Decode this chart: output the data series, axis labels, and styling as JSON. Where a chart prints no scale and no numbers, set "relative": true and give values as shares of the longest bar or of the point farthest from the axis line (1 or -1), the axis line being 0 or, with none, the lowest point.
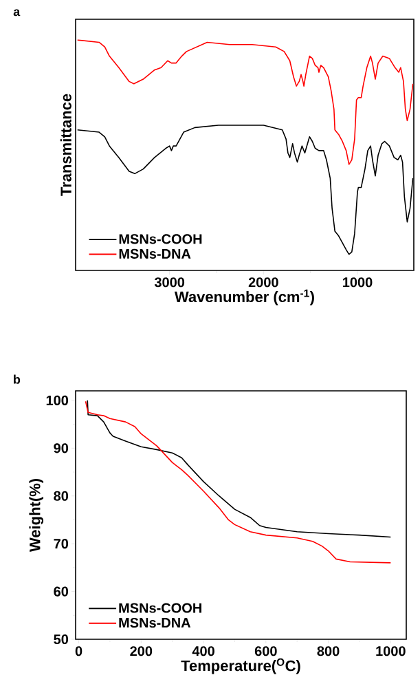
{
  "chart_data": [
    {
      "type": "line",
      "title": "a",
      "xlabel": "Wavenumber (cm$^{-1}$)",
      "ylabel": "Transmittance",
      "relative": true,
      "xlim": [
        4000,
        400
      ],
      "xticks": [
        3000,
        2000,
        1000
      ],
      "legend": "bottom left",
      "series": [
        {
          "name": "MSNs-COOH",
          "color": "#000000",
          "x": [
            3980,
            3750,
            3690,
            3640,
            3540,
            3430,
            3370,
            3280,
            3160,
            3040,
            3000,
            2980,
            2960,
            2930,
            2850,
            2730,
            2480,
            2240,
            2000,
            1800,
            1760,
            1740,
            1720,
            1690,
            1670,
            1640,
            1620,
            1590,
            1570,
            1560,
            1510,
            1480,
            1450,
            1410,
            1390,
            1360,
            1330,
            1290,
            1270,
            1240,
            1200,
            1160,
            1120,
            1090,
            1060,
            1030,
            1000,
            990,
            960,
            920,
            890,
            860,
            840,
            810,
            780,
            740,
            710,
            660,
            610,
            570,
            540,
            520,
            500,
            470,
            440,
            410
          ],
          "values": [
            0.61,
            0.6,
            0.58,
            0.54,
            0.49,
            0.43,
            0.42,
            0.44,
            0.49,
            0.53,
            0.54,
            0.52,
            0.54,
            0.54,
            0.6,
            0.62,
            0.63,
            0.63,
            0.63,
            0.61,
            0.57,
            0.51,
            0.49,
            0.55,
            0.51,
            0.47,
            0.5,
            0.54,
            0.52,
            0.51,
            0.58,
            0.56,
            0.53,
            0.52,
            0.52,
            0.52,
            0.48,
            0.4,
            0.27,
            0.17,
            0.15,
            0.12,
            0.09,
            0.07,
            0.08,
            0.16,
            0.34,
            0.36,
            0.36,
            0.44,
            0.52,
            0.54,
            0.48,
            0.41,
            0.5,
            0.55,
            0.56,
            0.54,
            0.49,
            0.48,
            0.5,
            0.47,
            0.32,
            0.21,
            0.27,
            0.4
          ]
        },
        {
          "name": "MSNs-DNA",
          "color": "#ff0000",
          "x": [
            3980,
            3750,
            3690,
            3640,
            3540,
            3430,
            3380,
            3280,
            3160,
            3090,
            3020,
            2980,
            2930,
            2870,
            2820,
            2600,
            2360,
            2120,
            1870,
            1780,
            1720,
            1680,
            1650,
            1620,
            1600,
            1580,
            1570,
            1550,
            1510,
            1480,
            1450,
            1420,
            1410,
            1390,
            1360,
            1310,
            1280,
            1250,
            1240,
            1200,
            1160,
            1120,
            1090,
            1060,
            1030,
            1010,
            990,
            960,
            940,
            900,
            860,
            840,
            810,
            780,
            730,
            660,
            600,
            560,
            540,
            510,
            490,
            470,
            440,
            410
          ],
          "values": [
            1.0,
            0.99,
            0.97,
            0.93,
            0.88,
            0.82,
            0.81,
            0.83,
            0.87,
            0.88,
            0.91,
            0.9,
            0.9,
            0.93,
            0.95,
            0.99,
            0.98,
            0.98,
            0.97,
            0.95,
            0.91,
            0.84,
            0.8,
            0.82,
            0.85,
            0.82,
            0.8,
            0.85,
            0.93,
            0.92,
            0.89,
            0.88,
            0.86,
            0.89,
            0.88,
            0.84,
            0.78,
            0.7,
            0.61,
            0.59,
            0.56,
            0.52,
            0.46,
            0.48,
            0.57,
            0.74,
            0.75,
            0.75,
            0.8,
            0.88,
            0.93,
            0.9,
            0.83,
            0.9,
            0.93,
            0.92,
            0.88,
            0.86,
            0.88,
            0.82,
            0.7,
            0.65,
            0.7,
            0.81
          ]
        }
      ]
    },
    {
      "type": "line",
      "title": "b",
      "xlabel": "Temperature($^{O}$C)",
      "ylabel": "Weight(%)",
      "xlim": [
        -10,
        1050
      ],
      "xticks": [
        0,
        200,
        400,
        600,
        800,
        1000
      ],
      "ylim": [
        50,
        102
      ],
      "yticks": [
        50,
        60,
        70,
        80,
        90,
        100
      ],
      "legend": "bottom left",
      "series": [
        {
          "name": "MSNs-COOH",
          "color": "#000000",
          "x": [
            28,
            30,
            60,
            80,
            100,
            110,
            150,
            200,
            250,
            300,
            330,
            350,
            400,
            450,
            500,
            550,
            580,
            600,
            700,
            800,
            900,
            1000
          ],
          "values": [
            100,
            97,
            96.8,
            95.5,
            93.2,
            92.5,
            91.5,
            90.3,
            89.7,
            89,
            88,
            86.5,
            83,
            80,
            77.2,
            75.5,
            73.8,
            73.4,
            72.5,
            72.1,
            71.8,
            71.4
          ]
        },
        {
          "name": "MSNs-DNA",
          "color": "#ff0000",
          "x": [
            22,
            30,
            60,
            80,
            100,
            150,
            180,
            200,
            230,
            250,
            300,
            330,
            350,
            400,
            450,
            480,
            500,
            550,
            600,
            700,
            750,
            780,
            800,
            825,
            870,
            1000
          ],
          "values": [
            99.8,
            97.5,
            97,
            96.8,
            96.2,
            95.5,
            94.5,
            93,
            91.5,
            90.5,
            87,
            85.5,
            84.3,
            81,
            77.5,
            75,
            74,
            72.5,
            71.8,
            71.2,
            70.5,
            69.5,
            68.5,
            66.8,
            66.2,
            66
          ]
        }
      ]
    }
  ]
}
